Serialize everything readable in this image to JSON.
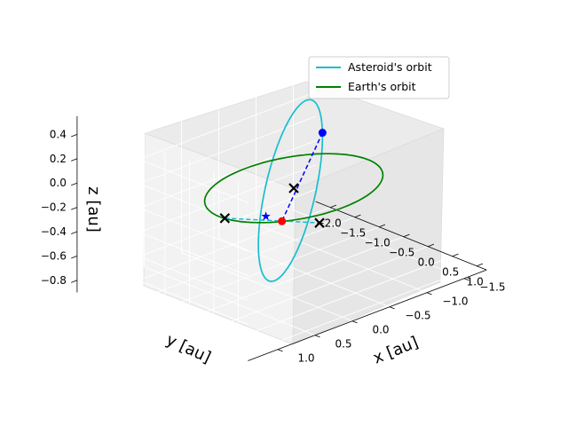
{
  "chart_data": {
    "type": "line",
    "projection": "3d",
    "xlabel": "x [au]",
    "ylabel": "y [au]",
    "zlabel": "z [au]",
    "xlim": [
      -2.3,
      1.2
    ],
    "ylim": [
      -1.8,
      1.4
    ],
    "zlim": [
      -0.9,
      0.55
    ],
    "x_ticks": [
      -2.0,
      -1.5,
      -1.0,
      -0.5,
      0.0,
      0.5,
      1.0
    ],
    "x_tick_labels": [
      "−2.0",
      "−1.5",
      "−1.0",
      "−0.5",
      "0.0",
      "0.5",
      "1.0"
    ],
    "y_ticks": [
      1.0,
      0.5,
      0.0,
      -0.5,
      -1.0,
      -1.5
    ],
    "y_tick_labels": [
      "1.0",
      "0.5",
      "0.0",
      "−0.5",
      "−1.0",
      "−1.5"
    ],
    "z_ticks": [
      0.4,
      0.2,
      0.0,
      -0.2,
      -0.4,
      -0.6,
      -0.8
    ],
    "z_tick_labels": [
      "0.4",
      "0.2",
      "0.0",
      "−0.2",
      "−0.4",
      "−0.6",
      "−0.8"
    ],
    "grid": true,
    "legend_position": "upper-right",
    "series": [
      {
        "name": "Asteroid's orbit",
        "color": "#17becf",
        "kind": "ellipse",
        "center": [
          -0.45,
          -0.25,
          -0.15
        ],
        "semi_axis_a": [
          1.1,
          1.15,
          0.0
        ],
        "semi_axis_b": [
          0.0,
          0.0,
          0.6
        ]
      },
      {
        "name": "Earth's orbit",
        "color": "#008000",
        "kind": "circle",
        "center": [
          0.0,
          0.0,
          0.0
        ],
        "radius": 1.0
      }
    ],
    "points": [
      {
        "role": "asteroid-position",
        "color": "#0000ff",
        "marker": "circle",
        "xyz": [
          -1.55,
          -1.4,
          -0.12
        ]
      },
      {
        "role": "earth-position",
        "color": "#ff0000",
        "marker": "circle",
        "xyz": [
          0.75,
          0.65,
          0.0
        ]
      },
      {
        "role": "closest-approach-earth",
        "color": "#0000ff",
        "marker": "star",
        "xyz": [
          0.62,
          0.78,
          0.05
        ]
      },
      {
        "role": "node-upper",
        "color": "#000000",
        "marker": "x",
        "xyz": [
          0.1,
          0.99,
          0.0
        ]
      },
      {
        "role": "node-lower",
        "color": "#000000",
        "marker": "x",
        "xyz": [
          -1.0,
          -1.0,
          -0.68
        ]
      },
      {
        "role": "origin",
        "color": "#000000",
        "marker": "x",
        "xyz": [
          0.0,
          0.0,
          0.0
        ]
      }
    ],
    "connectors": [
      {
        "role": "position-link",
        "color": "#0000ff",
        "style": "dashed"
      },
      {
        "role": "line-of-nodes",
        "color": "#17becf",
        "style": "dashed"
      }
    ]
  }
}
